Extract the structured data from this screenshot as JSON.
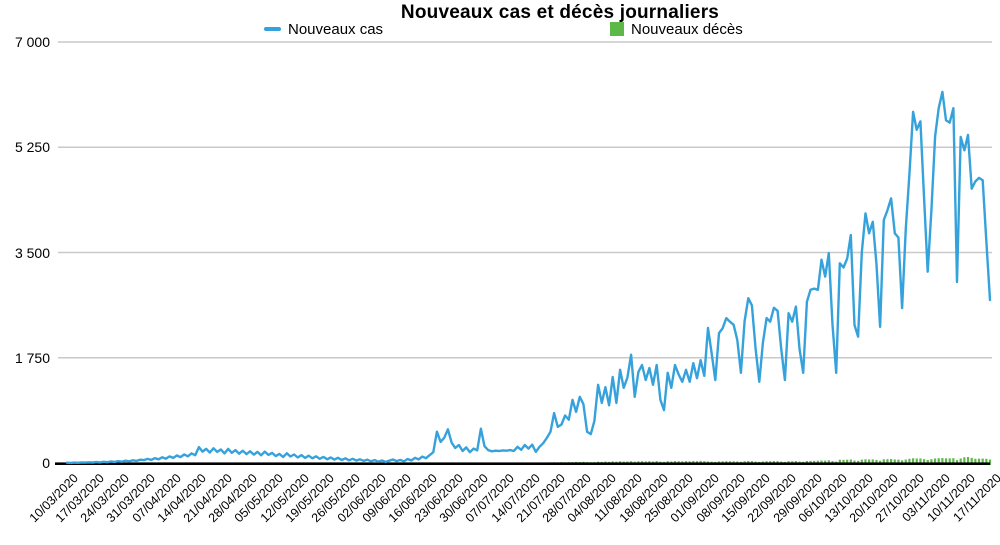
{
  "title": "Nouveaux cas et décès journaliers",
  "legend": {
    "cases_label": "Nouveaux cas",
    "deaths_label": "Nouveaux décès"
  },
  "colors": {
    "cases": "#36A2DB",
    "deaths": "#5CB947",
    "grid": "#C9C9C9",
    "axis": "#000000",
    "text": "#000000"
  },
  "chart_data": {
    "type": "line",
    "title": "Nouveaux cas et décès journaliers",
    "xlabel": "",
    "ylabel": "",
    "ylim": [
      0,
      7000
    ],
    "grid": "horizontal",
    "legend_position": "top",
    "y_ticks": [
      0,
      1750,
      3500,
      5250,
      7000
    ],
    "y_tick_labels": [
      "0",
      "1 750",
      "3 500",
      "5 250",
      "7 000"
    ],
    "x_tick_labels": [
      "10/03/2020",
      "17/03/2020",
      "24/03/2020",
      "31/03/2020",
      "07/04/2020",
      "14/04/2020",
      "21/04/2020",
      "28/04/2020",
      "05/05/2020",
      "12/05/2020",
      "19/05/2020",
      "26/05/2020",
      "02/06/2020",
      "09/06/2020",
      "16/06/2020",
      "23/06/2020",
      "30/06/2020",
      "07/07/2020",
      "14/07/2020",
      "21/07/2020",
      "28/07/2020",
      "04/08/2020",
      "11/08/2020",
      "18/08/2020",
      "25/08/2020",
      "01/09/2020",
      "08/09/2020",
      "15/09/2020",
      "22/09/2020",
      "29/09/2020",
      "06/10/2020",
      "13/10/2020",
      "20/10/2020",
      "27/10/2020",
      "03/11/2020",
      "10/11/2020",
      "17/11/2020"
    ],
    "x_range": [
      "10/03/2020",
      "17/11/2020"
    ],
    "x_frequency": "daily",
    "series": [
      {
        "name": "Nouveaux cas",
        "render": "line",
        "color": "#36A2DB",
        "values": [
          5,
          2,
          7,
          3,
          10,
          6,
          12,
          8,
          15,
          10,
          20,
          14,
          25,
          18,
          30,
          22,
          38,
          28,
          45,
          35,
          55,
          48,
          68,
          52,
          80,
          62,
          95,
          72,
          110,
          85,
          125,
          98,
          142,
          112,
          160,
          130,
          265,
          190,
          235,
          175,
          245,
          185,
          225,
          160,
          235,
          170,
          215,
          155,
          205,
          148,
          195,
          140,
          185,
          128,
          190,
          135,
          168,
          115,
          152,
          100,
          162,
          108,
          142,
          92,
          132,
          85,
          122,
          78,
          112,
          70,
          102,
          62,
          92,
          56,
          86,
          50,
          78,
          45,
          70,
          40,
          62,
          35,
          55,
          28,
          48,
          22,
          42,
          18,
          38,
          58,
          32,
          52,
          26,
          66,
          42,
          86,
          60,
          106,
          80,
          130,
          180,
          520,
          350,
          420,
          560,
          340,
          250,
          300,
          200,
          260,
          180,
          240,
          210,
          570,
          280,
          215,
          195,
          205,
          200,
          210,
          205,
          215,
          200,
          270,
          220,
          300,
          240,
          305,
          185,
          270,
          330,
          415,
          520,
          830,
          600,
          640,
          790,
          720,
          1050,
          850,
          1100,
          980,
          520,
          480,
          700,
          1300,
          1000,
          1260,
          960,
          1430,
          1000,
          1550,
          1250,
          1420,
          1800,
          1100,
          1515,
          1630,
          1380,
          1580,
          1300,
          1630,
          1050,
          880,
          1500,
          1250,
          1630,
          1470,
          1350,
          1550,
          1350,
          1660,
          1410,
          1710,
          1450,
          2245,
          1830,
          1380,
          2160,
          2240,
          2410,
          2350,
          2300,
          2045,
          1500,
          2360,
          2740,
          2620,
          1900,
          1350,
          2000,
          2410,
          2350,
          2580,
          2530,
          1900,
          1380,
          2490,
          2350,
          2600,
          1900,
          1500,
          2680,
          2880,
          2900,
          2880,
          3380,
          3100,
          3490,
          2300,
          1500,
          3320,
          3250,
          3400,
          3790,
          2295,
          2100,
          3500,
          4150,
          3820,
          4010,
          3300,
          2265,
          4040,
          4200,
          4400,
          3820,
          3750,
          2575,
          3900,
          4800,
          5840,
          5540,
          5680,
          4400,
          3180,
          4200,
          5430,
          5900,
          6170,
          5700,
          5660,
          5900,
          3010,
          5420,
          5200,
          5455,
          4560,
          4680,
          4740,
          4700,
          3700,
          2710
        ]
      },
      {
        "name": "Nouveaux décès",
        "render": "bar",
        "color": "#5CB947",
        "values": [
          0,
          0,
          0,
          1,
          0,
          1,
          0,
          1,
          1,
          0,
          1,
          1,
          1,
          0,
          1,
          1,
          2,
          1,
          1,
          2,
          1,
          2,
          2,
          1,
          3,
          2,
          3,
          2,
          4,
          2,
          3,
          4,
          2,
          3,
          4,
          3,
          5,
          3,
          4,
          3,
          4,
          3,
          4,
          2,
          3,
          3,
          2,
          3,
          2,
          3,
          2,
          2,
          2,
          3,
          2,
          2,
          1,
          2,
          2,
          1,
          2,
          1,
          2,
          1,
          1,
          2,
          1,
          1,
          1,
          1,
          1,
          1,
          0,
          1,
          1,
          0,
          1,
          0,
          1,
          0,
          1,
          0,
          1,
          0,
          1,
          0,
          0,
          1,
          0,
          1,
          0,
          0,
          1,
          0,
          1,
          1,
          0,
          1,
          1,
          1,
          2,
          2,
          3,
          2,
          3,
          2,
          2,
          3,
          2,
          3,
          2,
          3,
          3,
          4,
          3,
          4,
          3,
          5,
          4,
          5,
          4,
          6,
          5,
          6,
          5,
          7,
          6,
          8,
          6,
          7,
          8,
          9,
          10,
          12,
          10,
          14,
          12,
          15,
          14,
          18,
          16,
          20,
          15,
          12,
          14,
          22,
          18,
          24,
          20,
          26,
          22,
          28,
          24,
          26,
          30,
          22,
          28,
          30,
          26,
          30,
          25,
          32,
          22,
          20,
          30,
          26,
          32,
          30,
          28,
          32,
          28,
          34,
          30,
          35,
          30,
          25,
          22,
          18,
          26,
          28,
          30,
          29,
          28,
          25,
          20,
          30,
          34,
          32,
          24,
          19,
          26,
          30,
          29,
          32,
          31,
          24,
          19,
          31,
          30,
          32,
          24,
          20,
          34,
          35,
          36,
          38,
          42,
          40,
          44,
          32,
          24,
          55,
          52,
          55,
          58,
          40,
          36,
          56,
          62,
          58,
          60,
          52,
          38,
          62,
          64,
          66,
          58,
          56,
          44,
          58,
          70,
          78,
          75,
          76,
          64,
          50,
          62,
          75,
          80,
          82,
          78,
          77,
          80,
          48,
          75,
          95,
          100,
          85,
          70,
          72,
          74,
          70,
          58
        ]
      }
    ]
  }
}
